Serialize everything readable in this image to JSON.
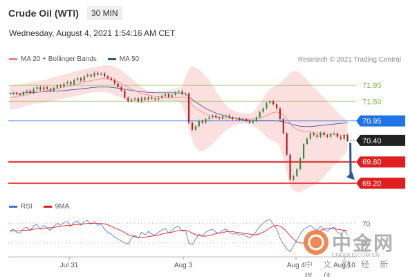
{
  "header": {
    "title": "Crude Oil (WTI)",
    "timeframe": "30 MIN"
  },
  "datetime": "Wednesday, August 4, 2021 1:54:16 AM CET",
  "legend": [
    {
      "label": "MA 20 + Bollinger Bands",
      "color": "#f08080"
    },
    {
      "label": "MA 50",
      "color": "#2f5597"
    }
  ],
  "copyright": "Research © 2021 Trading Central",
  "rsi_legend": [
    {
      "label": "RSI",
      "color": "#4a6fd4"
    },
    {
      "label": "9MA",
      "color": "#e02020"
    }
  ],
  "watermark": {
    "cn": "中金网",
    "text": "中 文 财 经 新 媒 体",
    "url": "CNGOLD.COM.CN"
  },
  "chart_data": {
    "type": "candlestick",
    "y_range": [
      68.9,
      72.4
    ],
    "x_labels": [
      "Jul 31",
      "Aug 3",
      "Aug 4",
      "Aug 10"
    ],
    "levels": [
      {
        "value": 71.95,
        "label": "71.95",
        "kind": "resistance",
        "color": "#7ab648"
      },
      {
        "value": 71.5,
        "label": "71.50",
        "kind": "resistance",
        "color": "#7ab648"
      },
      {
        "value": 70.95,
        "label": "70.95",
        "kind": "pivot",
        "color": "#1e73e8"
      },
      {
        "value": 70.4,
        "label": "70.40",
        "kind": "last",
        "color": "#222222"
      },
      {
        "value": 69.8,
        "label": "69.80",
        "kind": "support",
        "color": "#e02020"
      },
      {
        "value": 69.2,
        "label": "69.20",
        "kind": "support",
        "color": "#e02020"
      }
    ],
    "close": [
      71.72,
      71.74,
      71.7,
      71.68,
      71.76,
      71.8,
      71.74,
      71.85,
      71.9,
      71.82,
      71.9,
      71.85,
      71.8,
      71.88,
      71.95,
      71.92,
      72.0,
      72.05,
      71.98,
      72.1,
      72.15,
      72.08,
      72.2,
      72.25,
      72.2,
      72.3,
      72.25,
      72.28,
      72.2,
      72.15,
      72.1,
      72.0,
      71.9,
      71.8,
      71.6,
      71.5,
      71.55,
      71.58,
      71.5,
      71.6,
      71.55,
      71.62,
      71.58,
      71.55,
      71.6,
      71.65,
      71.7,
      71.62,
      71.68,
      71.75,
      71.78,
      71.7,
      71.72,
      70.9,
      70.7,
      70.8,
      70.95,
      70.9,
      71.0,
      71.05,
      71.1,
      71.05,
      71.02,
      71.08,
      71.1,
      71.05,
      71.0,
      71.02,
      70.98,
      71.0,
      70.95,
      70.9,
      70.95,
      71.05,
      71.2,
      71.3,
      71.45,
      71.5,
      71.42,
      71.3,
      71.0,
      70.6,
      70.0,
      69.3,
      69.4,
      69.6,
      69.9,
      70.3,
      70.45,
      70.6,
      70.55,
      70.5,
      70.62,
      70.55,
      70.5,
      70.58,
      70.6,
      70.5,
      70.45,
      70.55,
      70.4
    ],
    "ma20": [
      71.6,
      71.62,
      71.64,
      71.65,
      71.67,
      71.69,
      71.71,
      71.73,
      71.75,
      71.76,
      71.78,
      71.8,
      71.82,
      71.84,
      71.86,
      71.88,
      71.9,
      71.92,
      71.94,
      71.97,
      71.99,
      72.01,
      72.04,
      72.06,
      72.08,
      72.1,
      72.12,
      72.13,
      72.14,
      72.13,
      72.11,
      72.08,
      72.05,
      72.0,
      71.95,
      71.89,
      71.84,
      71.8,
      71.76,
      71.72,
      71.7,
      71.68,
      71.66,
      71.64,
      71.63,
      71.62,
      71.61,
      71.6,
      71.6,
      71.61,
      71.62,
      71.62,
      71.61,
      71.5,
      71.4,
      71.3,
      71.25,
      71.2,
      71.15,
      71.1,
      71.07,
      71.05,
      71.03,
      71.02,
      71.02,
      71.02,
      71.02,
      71.02,
      71.01,
      71.01,
      71.0,
      71.0,
      71.0,
      71.01,
      71.03,
      71.06,
      71.1,
      71.15,
      71.18,
      71.2,
      71.18,
      71.12,
      71.02,
      70.88,
      70.78,
      70.72,
      70.68,
      70.66,
      70.65,
      70.63,
      70.62,
      70.61,
      70.6,
      70.59,
      70.58,
      70.57,
      70.57,
      70.56,
      70.55,
      70.55,
      70.55
    ],
    "bb_upper": [
      71.95,
      71.96,
      71.97,
      71.98,
      71.99,
      72.0,
      72.02,
      72.04,
      72.06,
      72.08,
      72.1,
      72.12,
      72.15,
      72.18,
      72.2,
      72.22,
      72.25,
      72.28,
      72.3,
      72.33,
      72.36,
      72.38,
      72.4,
      72.42,
      72.44,
      72.46,
      72.48,
      72.5,
      72.52,
      72.52,
      72.5,
      72.47,
      72.43,
      72.38,
      72.3,
      72.22,
      72.14,
      72.06,
      71.98,
      71.9,
      71.84,
      71.8,
      71.78,
      71.78,
      71.78,
      71.79,
      71.8,
      71.8,
      71.82,
      71.85,
      71.88,
      71.92,
      72.2,
      72.4,
      72.5,
      72.45,
      72.4,
      72.3,
      72.2,
      72.1,
      71.95,
      71.8,
      71.65,
      71.5,
      71.4,
      71.3,
      71.25,
      71.2,
      71.18,
      71.16,
      71.15,
      71.16,
      71.2,
      71.3,
      71.45,
      71.6,
      71.75,
      71.85,
      71.9,
      71.95,
      72.0,
      72.1,
      72.2,
      72.3,
      72.35,
      72.35,
      72.3,
      72.2,
      72.1,
      72.0,
      71.9,
      71.8,
      71.7,
      71.6,
      71.5,
      71.4,
      71.3,
      71.2,
      71.1,
      71.02,
      70.95
    ],
    "bb_lower": [
      71.25,
      71.27,
      71.3,
      71.32,
      71.35,
      71.38,
      71.4,
      71.42,
      71.44,
      71.45,
      71.46,
      71.48,
      71.5,
      71.52,
      71.54,
      71.56,
      71.58,
      71.6,
      71.62,
      71.64,
      71.66,
      71.68,
      71.7,
      71.72,
      71.74,
      71.76,
      71.76,
      71.76,
      71.76,
      71.74,
      71.72,
      71.68,
      71.64,
      71.6,
      71.55,
      71.5,
      71.48,
      71.46,
      71.44,
      71.44,
      71.45,
      71.46,
      71.47,
      71.48,
      71.49,
      71.5,
      71.5,
      71.5,
      71.5,
      71.5,
      71.48,
      71.4,
      71.1,
      70.7,
      70.4,
      70.2,
      70.1,
      70.1,
      70.15,
      70.22,
      70.3,
      70.4,
      70.5,
      70.6,
      70.68,
      70.75,
      70.8,
      70.84,
      70.86,
      70.88,
      70.88,
      70.86,
      70.82,
      70.76,
      70.68,
      70.6,
      70.5,
      70.42,
      70.38,
      70.35,
      70.2,
      69.9,
      69.5,
      69.1,
      69.0,
      68.95,
      68.95,
      69.0,
      69.05,
      69.1,
      69.15,
      69.2,
      69.28,
      69.38,
      69.5,
      69.6,
      69.7,
      69.8,
      69.9,
      70.0,
      70.1
    ],
    "ma50": [
      71.72,
      71.72,
      71.73,
      71.73,
      71.74,
      71.74,
      71.75,
      71.75,
      71.76,
      71.76,
      71.77,
      71.77,
      71.78,
      71.78,
      71.79,
      71.8,
      71.8,
      71.81,
      71.82,
      71.83,
      71.84,
      71.85,
      71.86,
      71.87,
      71.88,
      71.89,
      71.9,
      71.9,
      71.9,
      71.9,
      71.89,
      71.88,
      71.87,
      71.86,
      71.84,
      71.82,
      71.8,
      71.79,
      71.78,
      71.77,
      71.76,
      71.75,
      71.75,
      71.74,
      71.74,
      71.74,
      71.74,
      71.74,
      71.74,
      71.74,
      71.73,
      71.72,
      71.7,
      71.62,
      71.55,
      71.48,
      71.42,
      71.36,
      71.3,
      71.25,
      71.21,
      71.17,
      71.14,
      71.11,
      71.08,
      71.05,
      71.03,
      71.01,
      70.99,
      70.98,
      70.97,
      70.96,
      70.96,
      70.96,
      70.96,
      70.96,
      70.96,
      70.96,
      70.96,
      70.95,
      70.94,
      70.92,
      70.9,
      70.87,
      70.84,
      70.82,
      70.8,
      70.79,
      70.79,
      70.79,
      70.8,
      70.81,
      70.82,
      70.83,
      70.84,
      70.85,
      70.86,
      70.87,
      70.88,
      70.89,
      70.9
    ],
    "rsi": [
      55,
      58,
      52,
      50,
      60,
      62,
      55,
      65,
      68,
      58,
      66,
      60,
      56,
      64,
      70,
      66,
      72,
      74,
      64,
      72,
      75,
      66,
      74,
      76,
      68,
      74,
      66,
      68,
      58,
      52,
      48,
      42,
      38,
      34,
      30,
      28,
      40,
      46,
      40,
      52,
      46,
      54,
      48,
      46,
      52,
      56,
      60,
      50,
      56,
      62,
      64,
      54,
      56,
      30,
      26,
      38,
      48,
      44,
      52,
      56,
      58,
      52,
      50,
      56,
      58,
      52,
      48,
      50,
      46,
      48,
      44,
      40,
      46,
      54,
      64,
      70,
      76,
      78,
      68,
      58,
      40,
      28,
      18,
      12,
      24,
      36,
      48,
      58,
      62,
      66,
      60,
      56,
      64,
      58,
      54,
      60,
      62,
      52,
      48,
      56,
      46
    ],
    "rsi_ma": [
      54,
      55,
      55,
      55,
      56,
      56,
      57,
      58,
      59,
      59,
      60,
      61,
      61,
      62,
      63,
      64,
      65,
      66,
      66,
      67,
      68,
      68,
      69,
      70,
      70,
      70,
      70,
      70,
      69,
      67,
      64,
      61,
      58,
      55,
      51,
      47,
      45,
      43,
      41,
      41,
      42,
      43,
      44,
      45,
      46,
      48,
      50,
      51,
      52,
      54,
      55,
      56,
      56,
      54,
      50,
      47,
      45,
      44,
      44,
      45,
      47,
      49,
      50,
      51,
      53,
      54,
      53,
      52,
      51,
      50,
      49,
      48,
      47,
      47,
      49,
      52,
      56,
      61,
      64,
      66,
      64,
      60,
      53,
      45,
      38,
      32,
      30,
      30,
      32,
      38,
      45,
      52,
      56,
      58,
      60,
      60,
      59,
      58,
      57,
      56,
      55
    ],
    "rsi_levels": [
      70,
      30
    ]
  }
}
